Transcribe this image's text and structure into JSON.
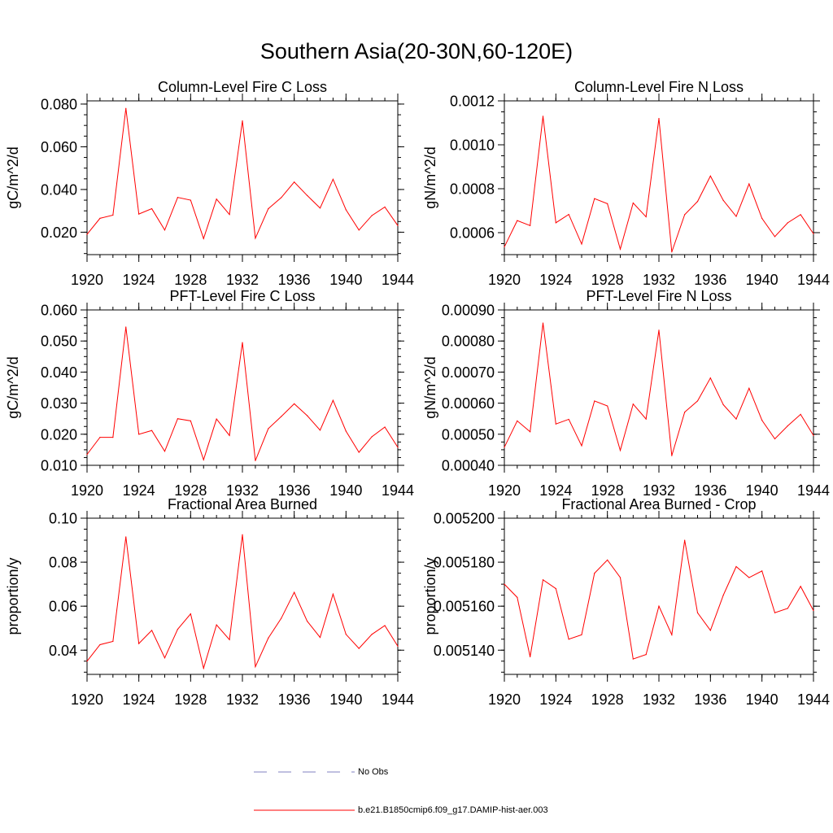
{
  "title": "Southern Asia(20-30N,60-120E)",
  "legend": {
    "obs_label": "No Obs",
    "model_label": "b.e21.B1850cmip6.f09_g17.DAMIP-hist-aer.003",
    "obs_color": "#8080c0",
    "model_color": "#ff0000"
  },
  "chart_data": [
    {
      "type": "line",
      "title": "Column-Level Fire C Loss",
      "ylabel": "gC/m^2/d",
      "xlim": [
        1920,
        1944
      ],
      "ylim": [
        0.0095,
        0.0815
      ],
      "xticks": [
        1920,
        1924,
        1928,
        1932,
        1936,
        1940,
        1944
      ],
      "xtick_labels": [
        "1920",
        "1924",
        "1928",
        "1932",
        "1936",
        "1940",
        "1944"
      ],
      "yticks": [
        0.02,
        0.04,
        0.06,
        0.08
      ],
      "ytick_labels": [
        "0.020",
        "0.040",
        "0.060",
        "0.080"
      ],
      "yminor": 0.005,
      "x": [
        1920,
        1921,
        1922,
        1923,
        1924,
        1925,
        1926,
        1927,
        1928,
        1929,
        1930,
        1931,
        1932,
        1933,
        1934,
        1935,
        1936,
        1937,
        1938,
        1939,
        1940,
        1941,
        1942,
        1943,
        1944
      ],
      "series": [
        {
          "color": "#ff0000",
          "values": [
            0.019,
            0.0265,
            0.028,
            0.078,
            0.0285,
            0.031,
            0.021,
            0.0363,
            0.035,
            0.017,
            0.0355,
            0.0283,
            0.0722,
            0.0172,
            0.031,
            0.0362,
            0.0435,
            0.0372,
            0.0313,
            0.0448,
            0.0305,
            0.021,
            0.0278,
            0.0318,
            0.0231
          ]
        }
      ]
    },
    {
      "type": "line",
      "title": "Column-Level Fire N Loss",
      "ylabel": "gN/m^2/d",
      "xlim": [
        1920,
        1944
      ],
      "ylim": [
        0.0005,
        0.0012
      ],
      "xticks": [
        1920,
        1924,
        1928,
        1932,
        1936,
        1940,
        1944
      ],
      "xtick_labels": [
        "1920",
        "1924",
        "1928",
        "1932",
        "1936",
        "1940",
        "1944"
      ],
      "yticks": [
        0.0006,
        0.0008,
        0.001,
        0.0012
      ],
      "ytick_labels": [
        "0.0006",
        "0.0008",
        "0.0010",
        "0.0012"
      ],
      "yminor": 5e-05,
      "x": [
        1920,
        1921,
        1922,
        1923,
        1924,
        1925,
        1926,
        1927,
        1928,
        1929,
        1930,
        1931,
        1932,
        1933,
        1934,
        1935,
        1936,
        1937,
        1938,
        1939,
        1940,
        1941,
        1942,
        1943,
        1944
      ],
      "series": [
        {
          "color": "#ff0000",
          "values": [
            0.000535,
            0.000655,
            0.000632,
            0.00113,
            0.000645,
            0.000683,
            0.000548,
            0.000755,
            0.000732,
            0.000525,
            0.000735,
            0.000672,
            0.00112,
            0.000512,
            0.000682,
            0.000742,
            0.000858,
            0.000747,
            0.000674,
            0.000822,
            0.000665,
            0.000582,
            0.000645,
            0.000682,
            0.000595
          ]
        }
      ]
    },
    {
      "type": "line",
      "title": "PFT-Level Fire C Loss",
      "ylabel": "gC/m^2/d",
      "xlim": [
        1920,
        1944
      ],
      "ylim": [
        0.01,
        0.06
      ],
      "xticks": [
        1920,
        1924,
        1928,
        1932,
        1936,
        1940,
        1944
      ],
      "xtick_labels": [
        "1920",
        "1924",
        "1928",
        "1932",
        "1936",
        "1940",
        "1944"
      ],
      "yticks": [
        0.01,
        0.02,
        0.03,
        0.04,
        0.05,
        0.06
      ],
      "ytick_labels": [
        "0.010",
        "0.020",
        "0.030",
        "0.040",
        "0.050",
        "0.060"
      ],
      "yminor": 0.0025,
      "x": [
        1920,
        1921,
        1922,
        1923,
        1924,
        1925,
        1926,
        1927,
        1928,
        1929,
        1930,
        1931,
        1932,
        1933,
        1934,
        1935,
        1936,
        1937,
        1938,
        1939,
        1940,
        1941,
        1942,
        1943,
        1944
      ],
      "series": [
        {
          "color": "#ff0000",
          "values": [
            0.0135,
            0.019,
            0.019,
            0.0545,
            0.02,
            0.0212,
            0.0145,
            0.025,
            0.0243,
            0.0118,
            0.0249,
            0.0196,
            0.0495,
            0.0115,
            0.0218,
            0.0257,
            0.0298,
            0.026,
            0.0213,
            0.0309,
            0.021,
            0.0142,
            0.0192,
            0.0223,
            0.0158
          ]
        }
      ]
    },
    {
      "type": "line",
      "title": "PFT-Level Fire N Loss",
      "ylabel": "gN/m^2/d",
      "xlim": [
        1920,
        1944
      ],
      "ylim": [
        0.0004,
        0.0009
      ],
      "xticks": [
        1920,
        1924,
        1928,
        1932,
        1936,
        1940,
        1944
      ],
      "xtick_labels": [
        "1920",
        "1924",
        "1928",
        "1932",
        "1936",
        "1940",
        "1944"
      ],
      "yticks": [
        0.0004,
        0.0005,
        0.0006,
        0.0007,
        0.0008,
        0.0009
      ],
      "ytick_labels": [
        "0.00040",
        "0.00050",
        "0.00060",
        "0.00070",
        "0.00080",
        "0.00090"
      ],
      "yminor": 2.5e-05,
      "x": [
        1920,
        1921,
        1922,
        1923,
        1924,
        1925,
        1926,
        1927,
        1928,
        1929,
        1930,
        1931,
        1932,
        1933,
        1934,
        1935,
        1936,
        1937,
        1938,
        1939,
        1940,
        1941,
        1942,
        1943,
        1944
      ],
      "series": [
        {
          "color": "#ff0000",
          "values": [
            0.000458,
            0.000543,
            0.000508,
            0.000858,
            0.000533,
            0.000548,
            0.000463,
            0.000607,
            0.000591,
            0.000448,
            0.000597,
            0.000549,
            0.000835,
            0.000431,
            0.000571,
            0.000607,
            0.000681,
            0.000595,
            0.000549,
            0.000648,
            0.000545,
            0.000485,
            0.000527,
            0.000564,
            0.000496
          ]
        }
      ]
    },
    {
      "type": "line",
      "title": "Fractional Area Burned",
      "ylabel": "proportion/y",
      "xlim": [
        1920,
        1944
      ],
      "ylim": [
        0.029,
        0.1
      ],
      "xticks": [
        1920,
        1924,
        1928,
        1932,
        1936,
        1940,
        1944
      ],
      "xtick_labels": [
        "1920",
        "1924",
        "1928",
        "1932",
        "1936",
        "1940",
        "1944"
      ],
      "yticks": [
        0.04,
        0.06,
        0.08,
        0.1
      ],
      "ytick_labels": [
        "0.04",
        "0.06",
        "0.08",
        "0.10"
      ],
      "yminor": 0.005,
      "x": [
        1920,
        1921,
        1922,
        1923,
        1924,
        1925,
        1926,
        1927,
        1928,
        1929,
        1930,
        1931,
        1932,
        1933,
        1934,
        1935,
        1936,
        1937,
        1938,
        1939,
        1940,
        1941,
        1942,
        1943,
        1944
      ],
      "series": [
        {
          "color": "#ff0000",
          "values": [
            0.035,
            0.0425,
            0.044,
            0.0915,
            0.043,
            0.049,
            0.0365,
            0.0495,
            0.0565,
            0.0318,
            0.0515,
            0.0448,
            0.0925,
            0.0325,
            0.0455,
            0.0545,
            0.0663,
            0.0532,
            0.0458,
            0.0655,
            0.0472,
            0.0408,
            0.0472,
            0.0512,
            0.0418
          ]
        }
      ]
    },
    {
      "type": "line",
      "title": "Fractional Area Burned - Crop",
      "ylabel": "proportion/y",
      "xlim": [
        1920,
        1944
      ],
      "ylim": [
        0.005129,
        0.0052
      ],
      "xticks": [
        1920,
        1924,
        1928,
        1932,
        1936,
        1940,
        1944
      ],
      "xtick_labels": [
        "1920",
        "1924",
        "1928",
        "1932",
        "1936",
        "1940",
        "1944"
      ],
      "yticks": [
        0.00514,
        0.00516,
        0.00518,
        0.0052
      ],
      "ytick_labels": [
        "0.005140",
        "0.005160",
        "0.005180",
        "0.005200"
      ],
      "yminor": 5e-06,
      "x": [
        1920,
        1921,
        1922,
        1923,
        1924,
        1925,
        1926,
        1927,
        1928,
        1929,
        1930,
        1931,
        1932,
        1933,
        1934,
        1935,
        1936,
        1937,
        1938,
        1939,
        1940,
        1941,
        1942,
        1943,
        1944
      ],
      "series": [
        {
          "color": "#ff0000",
          "values": [
            0.00517,
            0.005164,
            0.005137,
            0.005172,
            0.005168,
            0.005145,
            0.005147,
            0.005175,
            0.005181,
            0.005173,
            0.005136,
            0.005138,
            0.00516,
            0.005147,
            0.00519,
            0.005157,
            0.005149,
            0.005165,
            0.005178,
            0.005173,
            0.005176,
            0.005157,
            0.005159,
            0.005169,
            0.005158
          ]
        }
      ]
    }
  ]
}
